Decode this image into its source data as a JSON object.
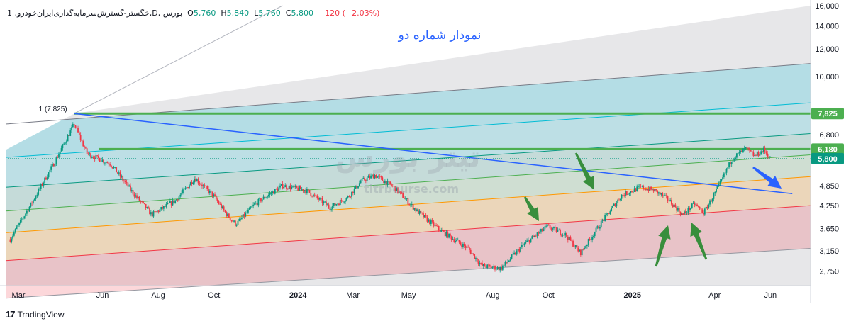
{
  "legend": {
    "symbol": "1 ,خگستر-گسترش‌سرمایه‌گذاری‌ایران‌خودرو,D, بورس",
    "o_label": "O",
    "o": "5,760",
    "h_label": "H",
    "h": "5,840",
    "l_label": "L",
    "l": "5,760",
    "c_label": "C",
    "c": "5,800",
    "change": "−120 (−2.03%)"
  },
  "annotation_title": "نمودار شماره دو",
  "pivot_label": "1 (7,825)",
  "watermark": {
    "text": "تیتر بورس",
    "url": "titrbourse.com"
  },
  "footer": {
    "logo": "17",
    "brand": "TradingView"
  },
  "colors": {
    "up": "#089981",
    "down": "#f23645",
    "level": "#4caf50",
    "blue_line": "#2962ff",
    "arrow_green": "#388e3c",
    "arrow_blue": "#2962ff",
    "title": "#2962ff"
  },
  "chart_data": {
    "type": "candlestick",
    "title": "نمودار شماره دو",
    "scale": "log",
    "ylim": [
      2500,
      16000
    ],
    "y_ticks": [
      "16,000",
      "14,000",
      "12,000",
      "10,000",
      "6,800",
      "4,850",
      "4,250",
      "3,650",
      "3,150",
      "2,750"
    ],
    "y_tick_values": [
      16000,
      14000,
      12000,
      10000,
      6800,
      4850,
      4250,
      3650,
      3150,
      2750
    ],
    "x_ticks": [
      "Mar",
      "Jun",
      "Aug",
      "Oct",
      "2024",
      "Mar",
      "May",
      "Aug",
      "Oct",
      "2025",
      "Apr",
      "Jun"
    ],
    "x_ticks_bold": [
      false,
      false,
      false,
      false,
      true,
      false,
      false,
      false,
      false,
      true,
      false,
      false
    ],
    "x_tick_dates": [
      "2023-03-01",
      "2023-06-01",
      "2023-08-01",
      "2023-10-01",
      "2024-01-01",
      "2024-03-01",
      "2024-05-01",
      "2024-08-01",
      "2024-10-01",
      "2025-01-01",
      "2025-04-01",
      "2025-06-01"
    ],
    "price_badges": [
      {
        "label": "7,825",
        "value": 7825,
        "color": "#4caf50"
      },
      {
        "label": "6,180",
        "value": 6180,
        "color": "#4caf50"
      },
      {
        "label": "5,800",
        "value": 5800,
        "color": "#089981"
      }
    ],
    "horizontal_levels": [
      {
        "value": 7825,
        "from": "2023-05-01",
        "color": "#4caf50"
      },
      {
        "value": 6180,
        "from": "2023-05-28",
        "color": "#4caf50"
      }
    ],
    "trendline": {
      "from": [
        "2023-05-01",
        7825
      ],
      "to": [
        "2025-06-25",
        4600
      ],
      "color": "#2962ff"
    },
    "pivot": [
      "2023-05-01",
      7825
    ],
    "anchor_points": [
      [
        "2023-02-20",
        3400
      ],
      [
        "2023-03-15",
        4300
      ],
      [
        "2023-04-10",
        5700
      ],
      [
        "2023-05-01",
        7300
      ],
      [
        "2023-05-15",
        6000
      ],
      [
        "2023-06-10",
        5600
      ],
      [
        "2023-07-05",
        4600
      ],
      [
        "2023-07-25",
        4000
      ],
      [
        "2023-08-20",
        4400
      ],
      [
        "2023-09-10",
        5100
      ],
      [
        "2023-09-30",
        4550
      ],
      [
        "2023-10-15",
        4000
      ],
      [
        "2023-10-25",
        3750
      ],
      [
        "2023-11-15",
        4300
      ],
      [
        "2023-12-15",
        4850
      ],
      [
        "2024-01-10",
        4700
      ],
      [
        "2024-02-05",
        4200
      ],
      [
        "2024-02-25",
        4500
      ],
      [
        "2024-03-10",
        5000
      ],
      [
        "2024-03-25",
        5200
      ],
      [
        "2024-04-15",
        4800
      ],
      [
        "2024-05-10",
        4100
      ],
      [
        "2024-06-05",
        3600
      ],
      [
        "2024-07-05",
        3200
      ],
      [
        "2024-07-20",
        2850
      ],
      [
        "2024-08-10",
        2800
      ],
      [
        "2024-09-05",
        3300
      ],
      [
        "2024-09-30",
        3700
      ],
      [
        "2024-10-20",
        3500
      ],
      [
        "2024-11-05",
        3100
      ],
      [
        "2024-11-25",
        3700
      ],
      [
        "2024-12-20",
        4550
      ],
      [
        "2025-01-10",
        4800
      ],
      [
        "2025-01-25",
        4700
      ],
      [
        "2025-02-10",
        4400
      ],
      [
        "2025-02-25",
        4000
      ],
      [
        "2025-03-10",
        4300
      ],
      [
        "2025-03-20",
        4050
      ],
      [
        "2025-04-05",
        4800
      ],
      [
        "2025-04-20",
        5800
      ],
      [
        "2025-05-05",
        6200
      ],
      [
        "2025-05-15",
        5900
      ],
      [
        "2025-05-25",
        6150
      ],
      [
        "2025-06-01",
        5800
      ]
    ],
    "last_close": 5800
  }
}
